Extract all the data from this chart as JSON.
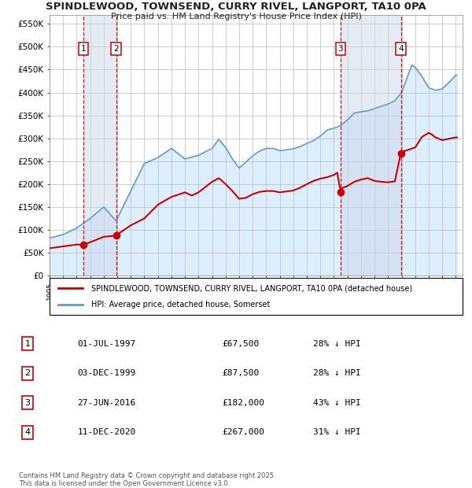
{
  "title": "SPINDLEWOOD, TOWNSEND, CURRY RIVEL, LANGPORT, TA10 0PA",
  "subtitle": "Price paid vs. HM Land Registry's House Price Index (HPI)",
  "xlim": [
    1995.0,
    2025.5
  ],
  "ylim": [
    0,
    570000
  ],
  "yticks": [
    0,
    50000,
    100000,
    150000,
    200000,
    250000,
    300000,
    350000,
    400000,
    450000,
    500000,
    550000
  ],
  "ytick_labels": [
    "£0",
    "£50K",
    "£100K",
    "£150K",
    "£200K",
    "£250K",
    "£300K",
    "£350K",
    "£400K",
    "£450K",
    "£500K",
    "£550K"
  ],
  "transaction_color": "#cc0000",
  "hpi_color": "#6699cc",
  "hpi_fill_color": "#ddeeff",
  "grid_color": "#bbbbbb",
  "background_color": "#ffffff",
  "legend_label_property": "SPINDLEWOOD, TOWNSEND, CURRY RIVEL, LANGPORT, TA10 0PA (detached house)",
  "legend_label_hpi": "HPI: Average price, detached house, Somerset",
  "transactions": [
    {
      "date": 1997.5,
      "price": 67500,
      "label": "1"
    },
    {
      "date": 1999.92,
      "price": 87500,
      "label": "2"
    },
    {
      "date": 2016.49,
      "price": 182000,
      "label": "3"
    },
    {
      "date": 2020.94,
      "price": 267000,
      "label": "4"
    }
  ],
  "table_rows": [
    {
      "num": "1",
      "date": "01-JUL-1997",
      "price": "£67,500",
      "pct": "28% ↓ HPI"
    },
    {
      "num": "2",
      "date": "03-DEC-1999",
      "price": "£87,500",
      "pct": "28% ↓ HPI"
    },
    {
      "num": "3",
      "date": "27-JUN-2016",
      "price": "£182,000",
      "pct": "43% ↓ HPI"
    },
    {
      "num": "4",
      "date": "11-DEC-2020",
      "price": "£267,000",
      "pct": "31% ↓ HPI"
    }
  ],
  "footer": "Contains HM Land Registry data © Crown copyright and database right 2025.\nThis data is licensed under the Open Government Licence v3.0."
}
